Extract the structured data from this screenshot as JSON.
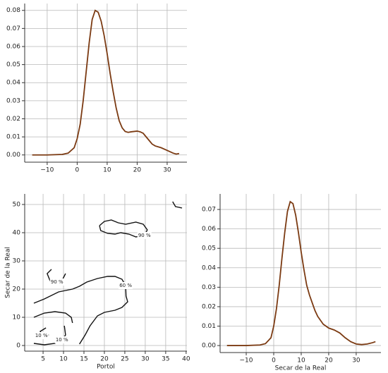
{
  "chart_data": [
    {
      "type": "line",
      "color": "#7b3a12",
      "grid": true,
      "x": [
        -15,
        -10,
        -5,
        -3,
        -1,
        0,
        1,
        2,
        3,
        4,
        5,
        6,
        7,
        8,
        9,
        10,
        11,
        12,
        13,
        14,
        15,
        16,
        17,
        18,
        19,
        20,
        21,
        22,
        23,
        24,
        25,
        26,
        28,
        30,
        32,
        33,
        34
      ],
      "values": [
        0,
        0,
        0.0003,
        0.001,
        0.004,
        0.009,
        0.017,
        0.03,
        0.046,
        0.062,
        0.075,
        0.08,
        0.079,
        0.074,
        0.066,
        0.056,
        0.045,
        0.035,
        0.026,
        0.019,
        0.015,
        0.013,
        0.0125,
        0.0128,
        0.013,
        0.0132,
        0.0128,
        0.012,
        0.01,
        0.008,
        0.006,
        0.005,
        0.004,
        0.0025,
        0.001,
        0.0005,
        0.0008
      ],
      "xlim": [
        -17.5,
        36.6
      ],
      "ylim": [
        -0.004,
        0.0838
      ],
      "xticks": [
        {
          "value": -10,
          "label": "−10"
        },
        0,
        10,
        20,
        30
      ],
      "yticks": [
        {
          "value": 0,
          "label": "0.00"
        },
        {
          "value": 0.01,
          "label": "0.01"
        },
        {
          "value": 0.02,
          "label": "0.02"
        },
        {
          "value": 0.03,
          "label": "0.03"
        },
        {
          "value": 0.04,
          "label": "0.04"
        },
        {
          "value": 0.05,
          "label": "0.05"
        },
        {
          "value": 0.06,
          "label": "0.06"
        },
        {
          "value": 0.07,
          "label": "0.07"
        },
        {
          "value": 0.08,
          "label": "0.08"
        }
      ]
    },
    {
      "type": "contour",
      "color": "#111111",
      "grid": true,
      "x_label": "Portol",
      "y_label": "Secar de la Real",
      "xlim": [
        0.5,
        40.2
      ],
      "ylim": [
        -2,
        53.75
      ],
      "xticks": [
        5,
        10,
        15,
        20,
        25,
        30,
        35,
        40
      ],
      "yticks": [
        0,
        10,
        20,
        30,
        40,
        50
      ],
      "contours": [
        {
          "label": "90 %",
          "x": [
            18.8,
            20.0,
            21.7,
            23.4,
            25.2,
            27.7,
            29.5,
            30.5,
            29.8,
            27.7,
            26.0,
            24.0,
            22.6,
            20.8,
            19.1,
            18.8
          ],
          "y": [
            42.5,
            44,
            44.5,
            43.5,
            43,
            43.75,
            43,
            41,
            39,
            38.5,
            39.5,
            40,
            39.5,
            39.75,
            40.75,
            42.5
          ]
        },
        {
          "label": "90 %",
          "x": [
            7.05,
            6.0,
            6.7,
            8.4,
            9.8,
            10.5
          ],
          "y": [
            27,
            25.5,
            23,
            22.5,
            23.5,
            25.5
          ]
        },
        {
          "label": "60 %",
          "x": [
            2.74,
            5.3,
            8.8,
            12.2,
            13.9,
            15.7,
            18.3,
            20.8,
            22.6,
            24.3,
            25.2,
            25.3,
            25.7,
            24.3,
            22.6,
            20.0,
            18.3,
            16.5,
            15.3,
            13.9
          ],
          "y": [
            15,
            16.5,
            19,
            20,
            21,
            22.5,
            23.75,
            24.5,
            24.5,
            23.5,
            21.25,
            17.5,
            15.5,
            13.5,
            12.5,
            11.75,
            10.5,
            7,
            3.75,
            0.5
          ]
        },
        {
          "x": [
            2.74,
            5.3,
            7.9,
            10.5,
            11.9,
            12.2
          ],
          "y": [
            10,
            11.5,
            12,
            11.5,
            10,
            8
          ]
        },
        {
          "label": "10 %",
          "x": [
            5.7,
            4.3,
            4.6,
            6.4
          ],
          "y": [
            6.25,
            5,
            3.5,
            3.75
          ]
        },
        {
          "label": "10 %",
          "x": [
            2.74,
            5.3,
            7.9,
            9.6,
            10.5,
            10.2
          ],
          "y": [
            0.75,
            0.25,
            0.75,
            2,
            3.75,
            7
          ]
        },
        {
          "x": [
            36.7,
            37.4,
            39.0
          ],
          "y": [
            51,
            49.25,
            48.75
          ]
        }
      ]
    },
    {
      "type": "line",
      "color": "#7b3a12",
      "grid": true,
      "x_label": "Secar de la Real",
      "x": [
        -17,
        -10,
        -5,
        -3,
        -1,
        0,
        1,
        2,
        3,
        4,
        5,
        6,
        7,
        8,
        9,
        10,
        11,
        12,
        13,
        14,
        15,
        16,
        17,
        18,
        20,
        22,
        24,
        26,
        28,
        30,
        32,
        34,
        36,
        37
      ],
      "values": [
        0,
        0,
        0.0003,
        0.001,
        0.004,
        0.01,
        0.019,
        0.031,
        0.045,
        0.058,
        0.069,
        0.074,
        0.073,
        0.067,
        0.058,
        0.048,
        0.039,
        0.031,
        0.026,
        0.022,
        0.018,
        0.015,
        0.013,
        0.011,
        0.009,
        0.008,
        0.0065,
        0.004,
        0.002,
        0.0008,
        0.0005,
        0.0008,
        0.0015,
        0.002
      ],
      "xlim": [
        -19.5,
        39
      ],
      "ylim": [
        -0.0036,
        0.078
      ],
      "xticks": [
        {
          "value": -10,
          "label": "−10"
        },
        0,
        10,
        20,
        30
      ],
      "yticks": [
        {
          "value": 0,
          "label": "0.00"
        },
        {
          "value": 0.01,
          "label": "0.01"
        },
        {
          "value": 0.02,
          "label": "0.02"
        },
        {
          "value": 0.03,
          "label": "0.03"
        },
        {
          "value": 0.04,
          "label": "0.04"
        },
        {
          "value": 0.05,
          "label": "0.05"
        },
        {
          "value": 0.06,
          "label": "0.06"
        },
        {
          "value": 0.07,
          "label": "0.07"
        }
      ]
    }
  ]
}
